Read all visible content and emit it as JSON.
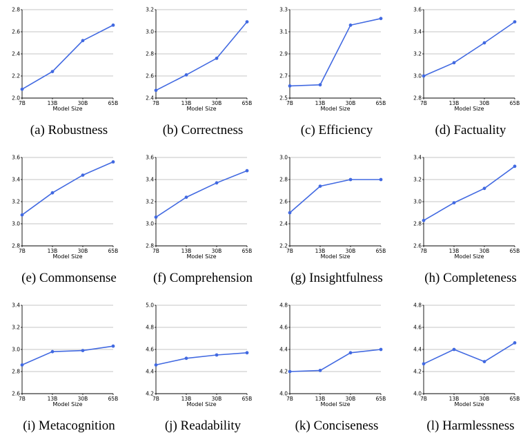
{
  "chart_data": [
    {
      "type": "line",
      "caption": "(a) Robustness",
      "categories": [
        "7B",
        "13B",
        "30B",
        "65B"
      ],
      "values": [
        2.08,
        2.24,
        2.52,
        2.66
      ],
      "ylim": [
        2.0,
        2.8
      ],
      "yticks": [
        "2.0",
        "2.2",
        "2.4",
        "2.6",
        "2.8"
      ],
      "xlabel": "Model Size",
      "ylabel": "",
      "title": "",
      "grid": "horizontal",
      "color": "#4169e1"
    },
    {
      "type": "line",
      "caption": "(b) Correctness",
      "categories": [
        "7B",
        "13B",
        "30B",
        "65B"
      ],
      "values": [
        2.47,
        2.61,
        2.76,
        3.09
      ],
      "ylim": [
        2.4,
        3.2
      ],
      "yticks": [
        "2.4",
        "2.6",
        "2.8",
        "3.0",
        "3.2"
      ],
      "xlabel": "Model Size",
      "ylabel": "",
      "title": "",
      "grid": "horizontal",
      "color": "#4169e1"
    },
    {
      "type": "line",
      "caption": "(c) Efficiency",
      "categories": [
        "7B",
        "13B",
        "30B",
        "65B"
      ],
      "values": [
        2.61,
        2.62,
        3.16,
        3.22
      ],
      "ylim": [
        2.5,
        3.3
      ],
      "yticks": [
        "2.5",
        "2.7",
        "2.9",
        "3.1",
        "3.3"
      ],
      "xlabel": "Model Size",
      "ylabel": "",
      "title": "",
      "grid": "horizontal",
      "color": "#4169e1"
    },
    {
      "type": "line",
      "caption": "(d) Factuality",
      "categories": [
        "7B",
        "13B",
        "30B",
        "65B"
      ],
      "values": [
        3.0,
        3.12,
        3.3,
        3.49
      ],
      "ylim": [
        2.8,
        3.6
      ],
      "yticks": [
        "2.8",
        "3.0",
        "3.2",
        "3.4",
        "3.6"
      ],
      "xlabel": "Model Size",
      "ylabel": "",
      "title": "",
      "grid": "horizontal",
      "color": "#4169e1"
    },
    {
      "type": "line",
      "caption": "(e) Commonsense",
      "categories": [
        "7B",
        "13B",
        "30B",
        "65B"
      ],
      "values": [
        3.08,
        3.28,
        3.44,
        3.56
      ],
      "ylim": [
        2.8,
        3.6
      ],
      "yticks": [
        "2.8",
        "3.0",
        "3.2",
        "3.4",
        "3.6"
      ],
      "xlabel": "Model Size",
      "ylabel": "",
      "title": "",
      "grid": "horizontal",
      "color": "#4169e1"
    },
    {
      "type": "line",
      "caption": "(f) Comprehension",
      "categories": [
        "7B",
        "13B",
        "30B",
        "65B"
      ],
      "values": [
        3.06,
        3.24,
        3.37,
        3.48
      ],
      "ylim": [
        2.8,
        3.6
      ],
      "yticks": [
        "2.8",
        "3.0",
        "3.2",
        "3.4",
        "3.6"
      ],
      "xlabel": "Model Size",
      "ylabel": "",
      "title": "",
      "grid": "horizontal",
      "color": "#4169e1"
    },
    {
      "type": "line",
      "caption": "(g) Insightfulness",
      "categories": [
        "7B",
        "13B",
        "30B",
        "65B"
      ],
      "values": [
        2.5,
        2.74,
        2.8,
        2.8
      ],
      "ylim": [
        2.2,
        3.0
      ],
      "yticks": [
        "2.2",
        "2.4",
        "2.6",
        "2.8",
        "3.0"
      ],
      "xlabel": "Model Size",
      "ylabel": "",
      "title": "",
      "grid": "horizontal",
      "color": "#4169e1"
    },
    {
      "type": "line",
      "caption": "(h) Completeness",
      "categories": [
        "7B",
        "13B",
        "30B",
        "65B"
      ],
      "values": [
        2.83,
        2.99,
        3.12,
        3.32
      ],
      "ylim": [
        2.6,
        3.4
      ],
      "yticks": [
        "2.6",
        "2.8",
        "3.0",
        "3.2",
        "3.4"
      ],
      "xlabel": "Model Size",
      "ylabel": "",
      "title": "",
      "grid": "horizontal",
      "color": "#4169e1"
    },
    {
      "type": "line",
      "caption": "(i) Metacognition",
      "categories": [
        "7B",
        "13B",
        "30B",
        "65B"
      ],
      "values": [
        2.86,
        2.98,
        2.99,
        3.03
      ],
      "ylim": [
        2.6,
        3.4
      ],
      "yticks": [
        "2.6",
        "2.8",
        "3.0",
        "3.2",
        "3.4"
      ],
      "xlabel": "Model Size",
      "ylabel": "",
      "title": "",
      "grid": "horizontal",
      "color": "#4169e1"
    },
    {
      "type": "line",
      "caption": "(j) Readability",
      "categories": [
        "7B",
        "13B",
        "30B",
        "65B"
      ],
      "values": [
        4.46,
        4.52,
        4.55,
        4.57
      ],
      "ylim": [
        4.2,
        5.0
      ],
      "yticks": [
        "4.2",
        "4.4",
        "4.6",
        "4.8",
        "5.0"
      ],
      "xlabel": "Model Size",
      "ylabel": "",
      "title": "",
      "grid": "horizontal",
      "color": "#4169e1"
    },
    {
      "type": "line",
      "caption": "(k) Conciseness",
      "categories": [
        "7B",
        "13B",
        "30B",
        "65B"
      ],
      "values": [
        4.2,
        4.21,
        4.37,
        4.4
      ],
      "ylim": [
        4.0,
        4.8
      ],
      "yticks": [
        "4.0",
        "4.2",
        "4.4",
        "4.6",
        "4.8"
      ],
      "xlabel": "Model Size",
      "ylabel": "",
      "title": "",
      "grid": "horizontal",
      "color": "#4169e1"
    },
    {
      "type": "line",
      "caption": "(l) Harmlessness",
      "categories": [
        "7B",
        "13B",
        "30B",
        "65B"
      ],
      "values": [
        4.27,
        4.4,
        4.29,
        4.46
      ],
      "ylim": [
        4.0,
        4.8
      ],
      "yticks": [
        "4.0",
        "4.2",
        "4.4",
        "4.6",
        "4.8"
      ],
      "xlabel": "Model Size",
      "ylabel": "",
      "title": "",
      "grid": "horizontal",
      "color": "#4169e1"
    }
  ]
}
